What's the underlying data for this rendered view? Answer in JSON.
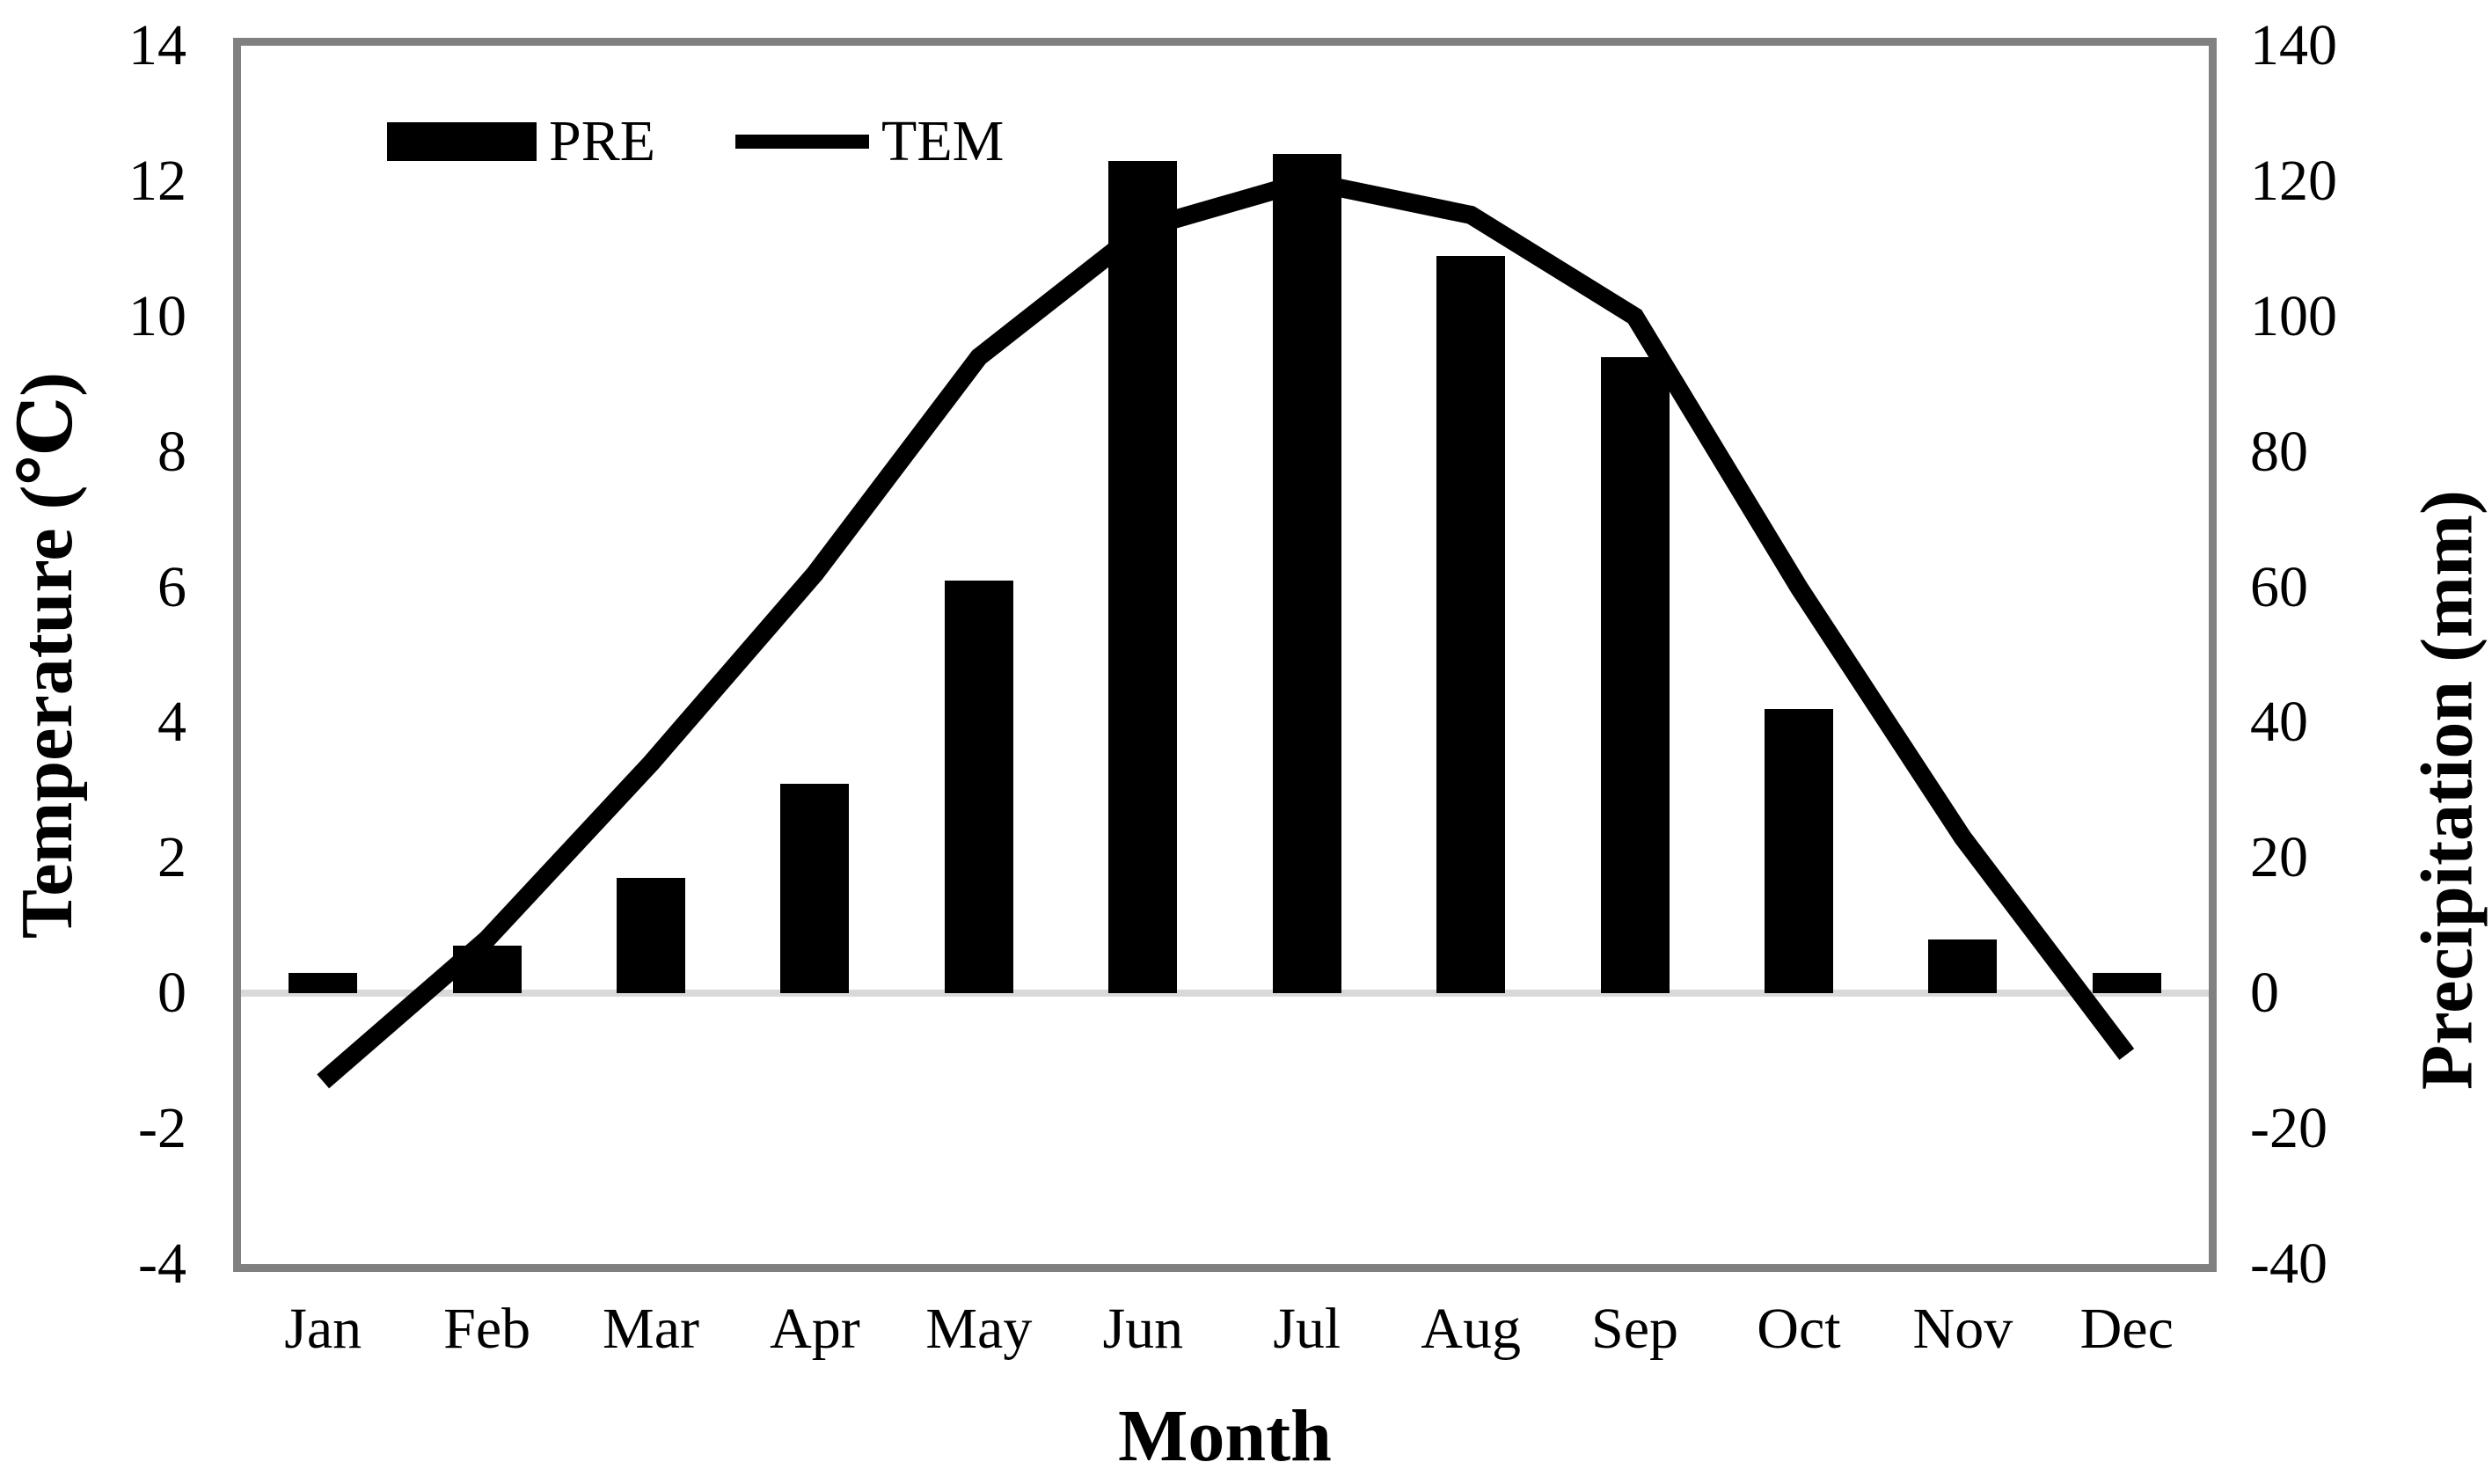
{
  "chart_data": {
    "type": "combo",
    "categories": [
      "Jan",
      "Feb",
      "Mar",
      "Apr",
      "May",
      "Jun",
      "Jul",
      "Aug",
      "Sep",
      "Oct",
      "Nov",
      "Dec"
    ],
    "series": [
      {
        "name": "PRE",
        "type": "bar",
        "axis": "right",
        "color": "#000000",
        "values": [
          3,
          7,
          17,
          31,
          61,
          123,
          124,
          109,
          94,
          42,
          8,
          3
        ]
      },
      {
        "name": "TEM",
        "type": "line",
        "axis": "left",
        "color": "#000000",
        "values": [
          -1.3,
          0.8,
          3.4,
          6.2,
          9.4,
          11.3,
          12.0,
          11.5,
          10.0,
          6.0,
          2.3,
          -0.9
        ]
      }
    ],
    "left_axis": {
      "title": "Temperature (℃)",
      "min": -4,
      "max": 14,
      "step": 2,
      "ticks": [
        14,
        12,
        10,
        8,
        6,
        4,
        2,
        0,
        -2,
        -4
      ]
    },
    "right_axis": {
      "title": "Precipitation (mm)",
      "min": -40,
      "max": 140,
      "step": 20,
      "ticks": [
        140,
        120,
        100,
        80,
        60,
        40,
        20,
        0,
        -20,
        -40
      ]
    },
    "x_axis": {
      "title": "Month"
    },
    "legend": {
      "position": "top-left-inside",
      "items": [
        {
          "label": "PRE",
          "swatch": "bar"
        },
        {
          "label": "TEM",
          "swatch": "line"
        }
      ]
    },
    "gridlines": {
      "zero_line_only": true,
      "zero_line_color": "#d9d9d9"
    },
    "frame_color": "#808080",
    "bar_color": "#000000",
    "line_color": "#000000"
  }
}
